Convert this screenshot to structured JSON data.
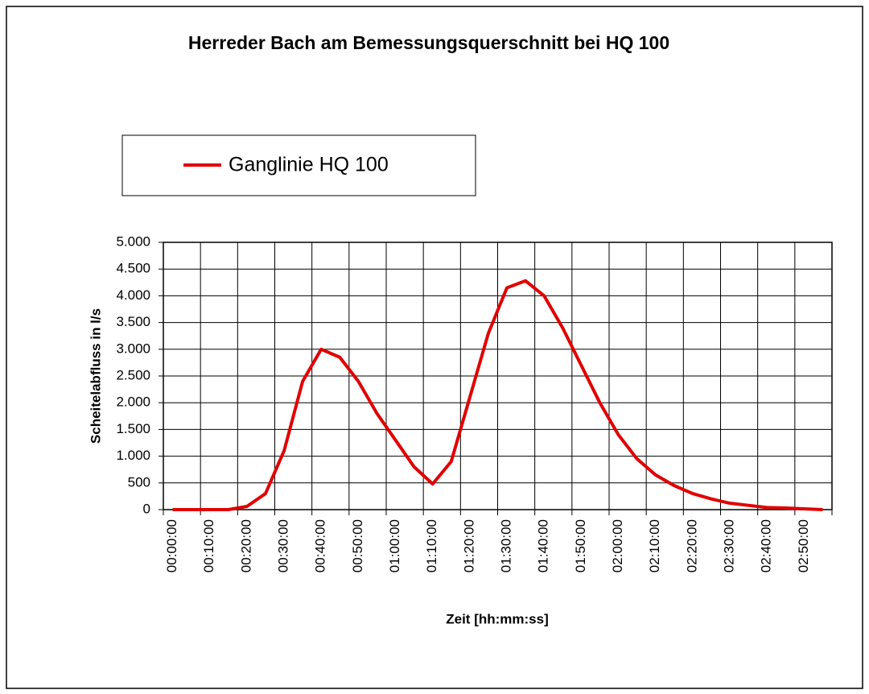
{
  "chart_data": {
    "type": "line",
    "title": "Herreder Bach am Bemessungsquerschnitt bei HQ 100",
    "x_label": "Zeit [hh:mm:ss]",
    "y_label": "Scheitelabfluss in l/s",
    "categories": [
      "00:00:00",
      null,
      "00:10:00",
      null,
      "00:20:00",
      null,
      "00:30:00",
      null,
      "00:40:00",
      null,
      "00:50:00",
      null,
      "01:00:00",
      null,
      "01:10:00",
      null,
      "01:20:00",
      null,
      "01:30:00",
      null,
      "01:40:00",
      null,
      "01:50:00",
      null,
      "02:00:00",
      null,
      "02:10:00",
      null,
      "02:20:00",
      null,
      "02:30:00",
      null,
      "02:40:00",
      null,
      "02:50:00",
      null
    ],
    "series": [
      {
        "name": "Ganglinie HQ 100",
        "color": "#e00000",
        "values": [
          0,
          0,
          0,
          0,
          60,
          300,
          1100,
          2400,
          3000,
          2850,
          2400,
          1800,
          1300,
          800,
          480,
          900,
          2100,
          3300,
          4150,
          4280,
          4000,
          3400,
          2700,
          2000,
          1400,
          950,
          650,
          450,
          300,
          200,
          120,
          80,
          40,
          30,
          15,
          0
        ]
      }
    ],
    "ylim": [
      0,
      5000
    ],
    "yticks": [
      {
        "value": 0,
        "label": "0"
      },
      {
        "value": 500,
        "label": "500"
      },
      {
        "value": 1000,
        "label": "1.000"
      },
      {
        "value": 1500,
        "label": "1.500"
      },
      {
        "value": 2000,
        "label": "2.000"
      },
      {
        "value": 2500,
        "label": "2.500"
      },
      {
        "value": 3000,
        "label": "3.000"
      },
      {
        "value": 3500,
        "label": "3.500"
      },
      {
        "value": 4000,
        "label": "4.000"
      },
      {
        "value": 4500,
        "label": "4.500"
      },
      {
        "value": 5000,
        "label": "5.000"
      }
    ],
    "grid": true,
    "legend": "top-left"
  }
}
